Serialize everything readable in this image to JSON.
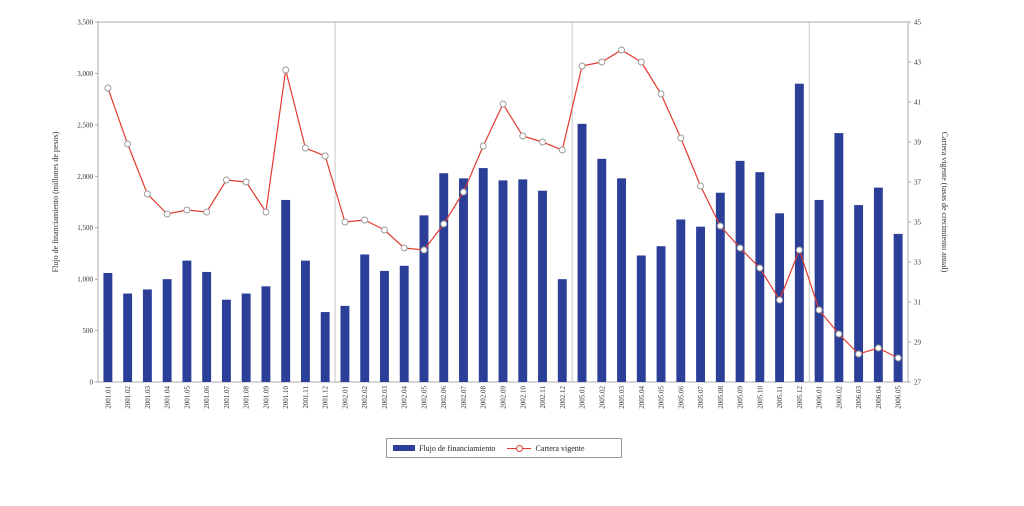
{
  "chart_data": {
    "type": "bar",
    "categories": [
      "2001.01",
      "2001.02",
      "2001.03",
      "2001.04",
      "2001.05",
      "2001.06",
      "2001.07",
      "2001.08",
      "2001.09",
      "2001.10",
      "2001.11",
      "2001.12",
      "2002.01",
      "2002.02",
      "2002.03",
      "2002.04",
      "2002.05",
      "2002.06",
      "2002.07",
      "2002.08",
      "2002.09",
      "2002.10",
      "2002.11",
      "2002.12",
      "2005.01",
      "2005.02",
      "2005.03",
      "2005.04",
      "2005.05",
      "2005.06",
      "2005.07",
      "2005.08",
      "2005.09",
      "2005.10",
      "2005.11",
      "2005.12",
      "2006.01",
      "2006.02",
      "2006.03",
      "2006.04",
      "2006.05"
    ],
    "y_ticks": [
      "0",
      "500",
      "1,000",
      "1,500",
      "2,000",
      "2,500",
      "3,000",
      "3,500"
    ],
    "y2_ticks": [
      "27",
      "29",
      "31",
      "33",
      "35",
      "37",
      "39",
      "41",
      "43",
      "45"
    ],
    "ylabel": "Flujo de financiamiento (millones de pesos)",
    "y2label": "Cartera vigente (tasas de crecimiento anual)",
    "ylim": [
      0,
      3500
    ],
    "y2lim": [
      27,
      45
    ],
    "year_separators_after": [
      11,
      23,
      35
    ],
    "legend_position": "bottom-center",
    "series": [
      {
        "name": "Flujo de financiamiento",
        "kind": "bar",
        "color": "#2b3f99",
        "values": [
          1060,
          860,
          900,
          1000,
          1180,
          1070,
          800,
          860,
          930,
          1770,
          1180,
          680,
          740,
          1240,
          1080,
          1130,
          1620,
          2030,
          1980,
          2080,
          1960,
          1970,
          1860,
          1000,
          2510,
          2170,
          1980,
          1230,
          1320,
          1580,
          1510,
          1840,
          2150,
          2040,
          1640,
          2900,
          1770,
          2420,
          1720,
          1890,
          1440
        ]
      },
      {
        "name": "Cartera vigente",
        "kind": "line",
        "axis": "right",
        "color": "#e23b2e",
        "values": [
          41.7,
          38.9,
          36.4,
          35.4,
          35.6,
          35.5,
          37.1,
          37.0,
          35.5,
          42.6,
          38.7,
          38.3,
          35.0,
          35.1,
          34.6,
          33.7,
          33.6,
          34.9,
          36.5,
          38.8,
          40.9,
          39.3,
          39.0,
          38.6,
          42.8,
          43.0,
          43.6,
          43.0,
          41.4,
          39.2,
          36.8,
          34.8,
          33.7,
          32.7,
          31.1,
          33.6,
          30.6,
          29.4,
          28.4,
          28.7,
          28.2
        ]
      }
    ]
  }
}
